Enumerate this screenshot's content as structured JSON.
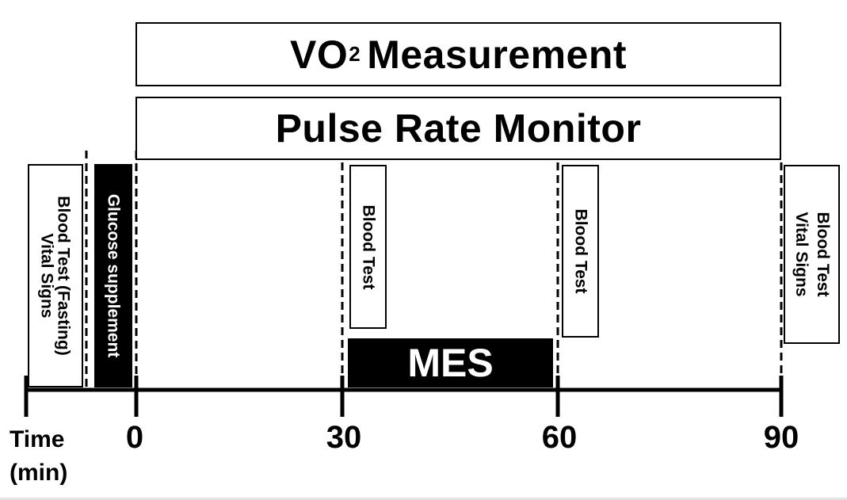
{
  "top_bands": {
    "vo2": {
      "prefix": "VO",
      "subscript": "2",
      "suffix": "Measurement"
    },
    "pulse": "Pulse Rate Monitor"
  },
  "boxes": {
    "vitals_pre": "Vital Signs",
    "blood_fasting": "Blood Test (Fasting)",
    "glucose": "Glucose supplement",
    "blood_30": "Blood Test",
    "blood_60": "Blood Test",
    "blood_vitals_90": "Blood Test\nVital Signs"
  },
  "mes_label": "MES",
  "axis": {
    "title_line1": "Time",
    "title_line2": "(min)",
    "ticks": [
      "0",
      "30",
      "60",
      "90"
    ]
  }
}
